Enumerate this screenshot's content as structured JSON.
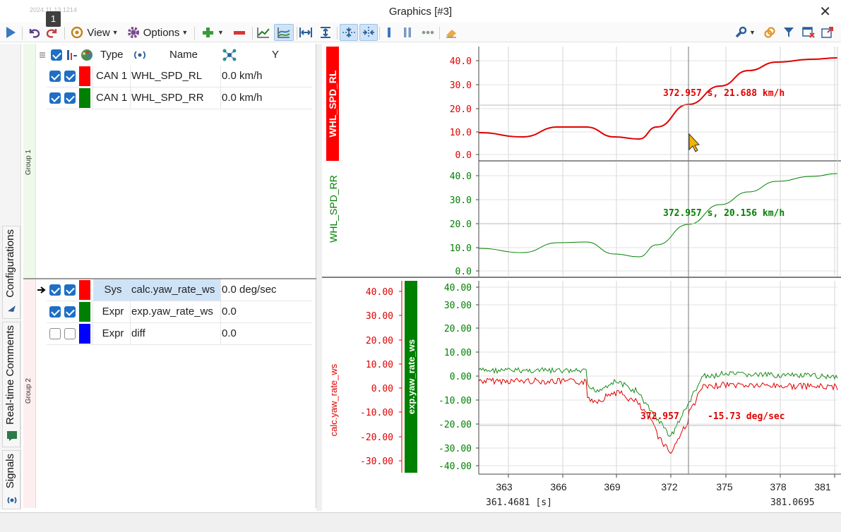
{
  "window": {
    "title": "Graphics [#3]",
    "timestamp_faint": "2024.11.13.1214",
    "notification_badge": "1"
  },
  "toolbar": {
    "view_label": "View",
    "options_label": "Options",
    "accent": "#1f6fc4"
  },
  "side_tabs": [
    {
      "label": "Configurations",
      "icon": "arrow-icon"
    },
    {
      "label": "Real-time Comments",
      "icon": "comment-icon"
    },
    {
      "label": "Signals",
      "icon": "signal-icon"
    }
  ],
  "group1": {
    "label": "Group 1",
    "headers": {
      "type": "Type",
      "name": "Name",
      "y": "Y"
    },
    "rows": [
      {
        "checked": true,
        "visible": true,
        "color": "#ff0000",
        "type": "CAN 1",
        "name": "WHL_SPD_RL",
        "y": "0.0 km/h"
      },
      {
        "checked": true,
        "visible": true,
        "color": "#008000",
        "type": "CAN 1",
        "name": "WHL_SPD_RR",
        "y": "0.0 km/h"
      }
    ]
  },
  "group2": {
    "label": "Group 2",
    "rows": [
      {
        "checked": true,
        "visible": true,
        "color": "#ff0000",
        "type": "Sys",
        "name": "calc.yaw_rate_ws",
        "y": "0.0 deg/sec",
        "selected": true
      },
      {
        "checked": true,
        "visible": true,
        "color": "#008000",
        "type": "Expr",
        "name": "exp.yaw_rate_ws",
        "y": "0.0",
        "selected": false
      },
      {
        "checked": false,
        "visible": false,
        "color": "#0000ff",
        "type": "Expr",
        "name": "diff",
        "y": "0.0",
        "selected": false
      }
    ]
  },
  "plot": {
    "cursor_time": 372.957,
    "x_range_start": "361.4681 [s]",
    "x_range_end": "381.0695",
    "x_ticks": [
      "363",
      "366",
      "369",
      "372",
      "375",
      "378",
      "381"
    ],
    "panel1": {
      "signal": "WHL_SPD_RL",
      "color": "#e00000",
      "y_ticks": [
        "40.0",
        "30.0",
        "20.0",
        "10.0",
        "0.0"
      ],
      "cursor_label": "372.957 s, 21.688 km/h"
    },
    "panel2": {
      "signal": "WHL_SPD_RR",
      "color": "#008000",
      "y_ticks": [
        "40.0",
        "30.0",
        "20.0",
        "10.0",
        "0.0"
      ],
      "cursor_label": "372.957 s, 20.156 km/h"
    },
    "panel3": {
      "signal_red": "calc.yaw_rate_ws",
      "signal_green": "exp.yaw_rate_ws",
      "y_ticks_red": [
        "40.00",
        "30.00",
        "20.00",
        "10.00",
        "0.00",
        "-10.00",
        "-20.00",
        "-30.00"
      ],
      "y_ticks_green": [
        "40.00",
        "30.00",
        "20.00",
        "10.00",
        "0.00",
        "-10.00",
        "-20.00",
        "-30.00",
        "-40.00"
      ],
      "cursor_label_time": "372.957",
      "cursor_label_value": "-15.73 deg/sec"
    }
  }
}
